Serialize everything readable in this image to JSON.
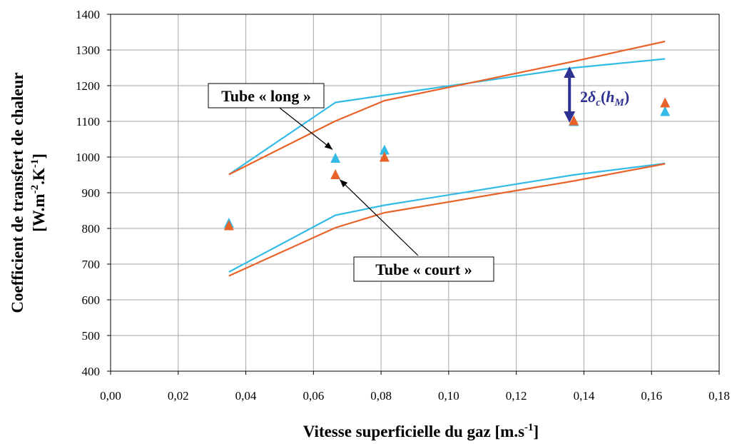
{
  "chart_data": {
    "type": "line",
    "title": "",
    "xlabel": "Vitesse superficielle du gaz [m.s",
    "xlabel_sup": "-1",
    "xlabel_end": "]",
    "ylabel_line1": "Coefficient de transfert de chaleur",
    "ylabel_line2_a": "[W.m",
    "ylabel_line2_sup1": "-2",
    "ylabel_line2_b": ".K",
    "ylabel_line2_sup2": "-1",
    "ylabel_line2_c": "]",
    "xlim": [
      0,
      0.18
    ],
    "ylim": [
      400,
      1400
    ],
    "x_ticks": [
      0,
      0.02,
      0.04,
      0.06,
      0.08,
      0.1,
      0.12,
      0.14,
      0.16,
      0.18
    ],
    "x_tick_labels": [
      "0,00",
      "0,02",
      "0,04",
      "0,06",
      "0,08",
      "0,10",
      "0,12",
      "0,14",
      "0,16",
      "0,18"
    ],
    "y_ticks": [
      400,
      500,
      600,
      700,
      800,
      900,
      1000,
      1100,
      1200,
      1300,
      1400
    ],
    "y_tick_labels": [
      "400",
      "500",
      "600",
      "700",
      "800",
      "900",
      "1000",
      "1100",
      "1200",
      "1300",
      "1400"
    ],
    "grid": true,
    "legend": "none",
    "colors": {
      "blue": "#33bbe6",
      "orange": "#e8632a",
      "arrow": "#2e3192"
    },
    "series": [
      {
        "kind": "line",
        "color": "blue",
        "x": [
          0.035,
          0.0665,
          0.081,
          0.137,
          0.164
        ],
        "y": [
          951,
          1153,
          1173,
          1250,
          1275
        ]
      },
      {
        "kind": "line",
        "color": "orange",
        "x": [
          0.035,
          0.0665,
          0.081,
          0.137,
          0.164
        ],
        "y": [
          951,
          1101,
          1158,
          1268,
          1324
        ]
      },
      {
        "kind": "line",
        "color": "blue",
        "x": [
          0.035,
          0.0665,
          0.081,
          0.137,
          0.164
        ],
        "y": [
          678,
          837,
          865,
          950,
          982
        ]
      },
      {
        "kind": "line",
        "color": "orange",
        "x": [
          0.035,
          0.0665,
          0.081,
          0.137,
          0.164
        ],
        "y": [
          667,
          802,
          844,
          933,
          981
        ]
      },
      {
        "kind": "scatter",
        "color": "blue",
        "x": [
          0.035,
          0.0665,
          0.081,
          0.137,
          0.164
        ],
        "y": [
          815,
          997,
          1020,
          1100,
          1128
        ]
      },
      {
        "kind": "scatter",
        "color": "orange",
        "x": [
          0.035,
          0.0665,
          0.081,
          0.137,
          0.164
        ],
        "y": [
          808,
          951,
          1000,
          1102,
          1152
        ]
      }
    ],
    "annotations": {
      "long": {
        "label": "Tube « long »",
        "point_x": 0.0665,
        "point_y": 997
      },
      "court": {
        "label": "Tube « court »",
        "point_x": 0.0665,
        "point_y": 951
      },
      "delta": {
        "prefix": "2",
        "delta": "δ",
        "sub_c": "c",
        "open": "(",
        "h": "h",
        "sub_m": "M",
        "close": ")",
        "x": 0.137,
        "y_top": 1250,
        "y_bottom": 1100
      }
    }
  }
}
